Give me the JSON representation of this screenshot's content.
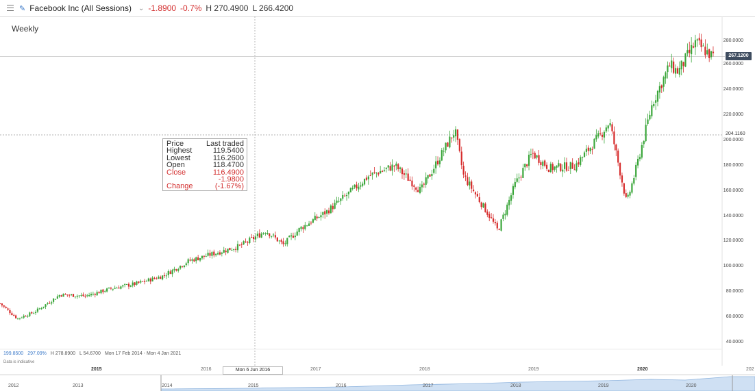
{
  "header": {
    "title": "Facebook Inc (All Sessions)",
    "change": "-1.8900",
    "change_pct": "-0.7%",
    "high": "H 270.4900",
    "low": "L 266.4200"
  },
  "interval_label": "Weekly",
  "tooltip": {
    "col1": "Price",
    "col2": "Last traded",
    "rows": [
      {
        "label": "Highest",
        "value": "119.5400"
      },
      {
        "label": "Lowest",
        "value": "116.2600"
      },
      {
        "label": "Open",
        "value": "118.4700"
      },
      {
        "label": "Close",
        "value": "116.4900"
      },
      {
        "label": "",
        "value": "-1.9800"
      },
      {
        "label": "Change",
        "value": "(-1.67%)"
      }
    ]
  },
  "footer": {
    "price": "199.8500",
    "pct": "297.09%",
    "high": "H 278.8900",
    "low": "L 54.6700",
    "range": "Mon 17 Feb 2014 - Mon 4 Jan 2021",
    "disclaimer": "Data is indicative"
  },
  "last_price_badge": "267.1200",
  "crosshair_price": "204.1160",
  "crosshair_date": "Mon 6 Jun 2016",
  "x_axis_years": [
    "2015",
    "2016",
    "2017",
    "2018",
    "2019",
    "2020",
    "202"
  ],
  "navigator_years": [
    "2012",
    "2013",
    "2014",
    "2015",
    "2016",
    "2017",
    "2018",
    "2019",
    "2020"
  ],
  "colors": {
    "up": "#3aa63a",
    "down": "#d62b2b",
    "badge": "#3f4d60",
    "accent": "#3a78c8"
  },
  "chart_data": {
    "type": "candlestick",
    "title": "Weekly",
    "ylim": [
      40,
      280
    ],
    "y_ticks": [
      "280.0000",
      "260.0000",
      "240.0000",
      "220.0000",
      "200.0000",
      "180.0000",
      "160.0000",
      "140.0000",
      "120.0000",
      "100.0000",
      "80.0000",
      "60.0000",
      "40.0000"
    ],
    "x_range": [
      "Mon 17 Feb 2014",
      "Mon 4 Jan 2021"
    ],
    "close_path": [
      [
        "2014-02",
        70
      ],
      [
        "2014-04",
        58
      ],
      [
        "2014-06",
        63
      ],
      [
        "2014-09",
        77
      ],
      [
        "2014-12",
        76
      ],
      [
        "2015-03",
        82
      ],
      [
        "2015-06",
        86
      ],
      [
        "2015-09",
        92
      ],
      [
        "2015-12",
        104
      ],
      [
        "2016-03",
        110
      ],
      [
        "2016-06",
        116
      ],
      [
        "2016-09",
        128
      ],
      [
        "2016-11",
        117
      ],
      [
        "2017-01",
        130
      ],
      [
        "2017-04",
        143
      ],
      [
        "2017-07",
        160
      ],
      [
        "2017-09",
        172
      ],
      [
        "2017-12",
        180
      ],
      [
        "2018-03",
        160
      ],
      [
        "2018-07",
        208
      ],
      [
        "2018-08",
        172
      ],
      [
        "2018-11",
        140
      ],
      [
        "2018-12",
        128
      ],
      [
        "2019-02",
        165
      ],
      [
        "2019-04",
        190
      ],
      [
        "2019-06",
        178
      ],
      [
        "2019-09",
        180
      ],
      [
        "2019-12",
        205
      ],
      [
        "2020-01",
        215
      ],
      [
        "2020-03",
        150
      ],
      [
        "2020-04",
        175
      ],
      [
        "2020-06",
        230
      ],
      [
        "2020-08",
        260
      ],
      [
        "2020-09",
        255
      ],
      [
        "2020-11",
        278
      ],
      [
        "2021-01",
        267.12
      ]
    ]
  }
}
